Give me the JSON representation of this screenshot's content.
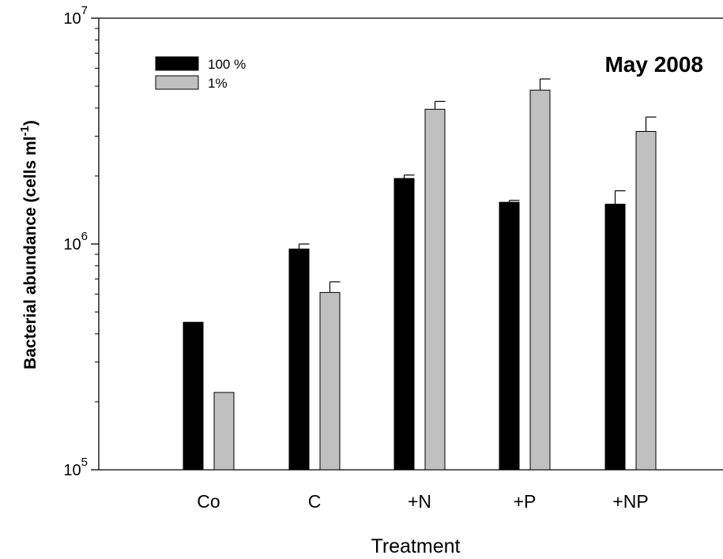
{
  "chart_data": {
    "type": "bar",
    "annotation": "May 2008",
    "xlabel": "Treatment",
    "ylabel": "Bacterial abundance (cells ml",
    "ylabel_superscript": "-1",
    "ylabel_close": ")",
    "yscale": "log",
    "ylim": [
      100000,
      10000000
    ],
    "yticks": [
      {
        "value": 100000,
        "base": "10",
        "exp": "5"
      },
      {
        "value": 1000000,
        "base": "10",
        "exp": "6"
      },
      {
        "value": 10000000,
        "base": "10",
        "exp": "7"
      }
    ],
    "categories": [
      "Co",
      "C",
      "+N",
      "+P",
      "+NP"
    ],
    "series": [
      {
        "name": "100 %",
        "color": "#000000",
        "values": [
          450000,
          950000,
          1950000,
          1530000,
          1500000
        ],
        "errors": [
          0,
          50000,
          70000,
          30000,
          220000
        ]
      },
      {
        "name": "1%",
        "color": "#c0c0c0",
        "values": [
          220000,
          610000,
          3950000,
          4800000,
          3150000
        ],
        "errors": [
          0,
          70000,
          330000,
          580000,
          500000
        ]
      }
    ],
    "legend_position": "top-left",
    "grid": false
  }
}
